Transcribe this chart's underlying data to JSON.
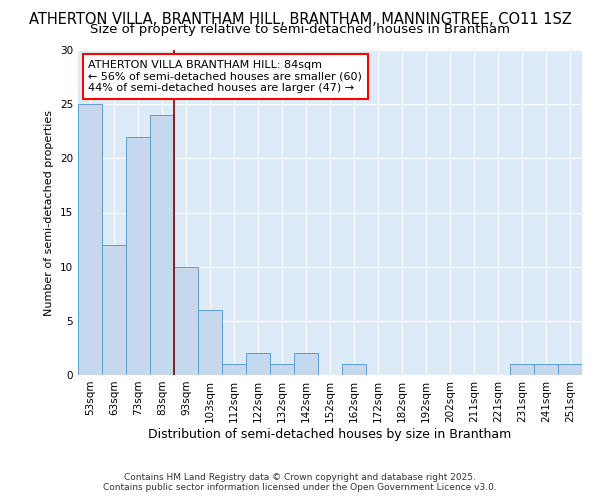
{
  "title1": "ATHERTON VILLA, BRANTHAM HILL, BRANTHAM, MANNINGTREE, CO11 1SZ",
  "title2": "Size of property relative to semi-detached houses in Brantham",
  "xlabel": "Distribution of semi-detached houses by size in Brantham",
  "ylabel": "Number of semi-detached properties",
  "categories": [
    "53sqm",
    "63sqm",
    "73sqm",
    "83sqm",
    "93sqm",
    "103sqm",
    "112sqm",
    "122sqm",
    "132sqm",
    "142sqm",
    "152sqm",
    "162sqm",
    "172sqm",
    "182sqm",
    "192sqm",
    "202sqm",
    "211sqm",
    "221sqm",
    "231sqm",
    "241sqm",
    "251sqm"
  ],
  "values": [
    25,
    12,
    22,
    24,
    10,
    6,
    1,
    2,
    1,
    2,
    0,
    1,
    0,
    0,
    0,
    0,
    0,
    0,
    1,
    1,
    1
  ],
  "bar_color": "#c5d8ed",
  "bar_edge_color": "#5a9fd4",
  "property_line_x": 3.5,
  "annotation_text_line1": "ATHERTON VILLA BRANTHAM HILL: 84sqm",
  "annotation_text_line2": "← 56% of semi-detached houses are smaller (60)",
  "annotation_text_line3": "44% of semi-detached houses are larger (47) →",
  "ylim": [
    0,
    30
  ],
  "yticks": [
    0,
    5,
    10,
    15,
    20,
    25,
    30
  ],
  "footer_line1": "Contains HM Land Registry data © Crown copyright and database right 2025.",
  "footer_line2": "Contains public sector information licensed under the Open Government Licence v3.0.",
  "fig_bg_color": "#ffffff",
  "plot_bg_color": "#ddeaf8",
  "grid_color": "#ffffff",
  "title1_fontsize": 10.5,
  "title2_fontsize": 9.5,
  "annotation_fontsize": 8,
  "ylabel_fontsize": 8,
  "xlabel_fontsize": 9,
  "tick_fontsize": 7.5,
  "footer_fontsize": 6.5
}
